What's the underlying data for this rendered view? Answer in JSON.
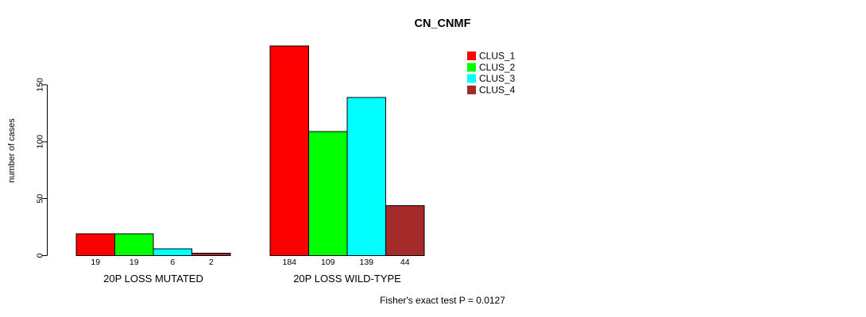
{
  "chart_data": {
    "type": "bar",
    "title": "CN_CNMF",
    "ylabel": "number of cases",
    "xlabel": "",
    "y_ticks": [
      0,
      50,
      100,
      150
    ],
    "ylim": [
      0,
      150
    ],
    "grid": false,
    "legend_position": "top-right-of-plot",
    "categories": [
      "20P LOSS MUTATED",
      "20P LOSS WILD-TYPE"
    ],
    "series": [
      {
        "name": "CLUS_1",
        "color": "#FF0000",
        "values": [
          19,
          184
        ]
      },
      {
        "name": "CLUS_2",
        "color": "#00FF00",
        "values": [
          19,
          109
        ]
      },
      {
        "name": "CLUS_3",
        "color": "#00FFFF",
        "values": [
          6,
          139
        ]
      },
      {
        "name": "CLUS_4",
        "color": "#A52A2A",
        "values": [
          2,
          44
        ]
      }
    ],
    "value_labels_shown": true,
    "annotation": "Fisher's exact test P = 0.0127"
  }
}
